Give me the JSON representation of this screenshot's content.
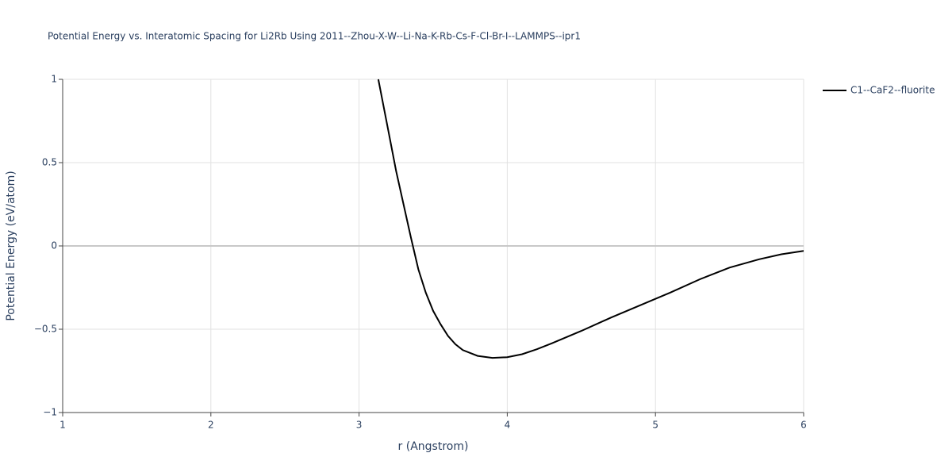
{
  "chart_data": {
    "type": "line",
    "title": "Potential Energy vs. Interatomic Spacing for Li2Rb Using 2011--Zhou-X-W--Li-Na-K-Rb-Cs-F-Cl-Br-I--LAMMPS--ipr1",
    "x_label": "r (Angstrom)",
    "y_label": "Potential Energy (eV/atom)",
    "xlim": [
      1,
      6
    ],
    "ylim": [
      -1,
      1
    ],
    "xticks": [
      1,
      2,
      3,
      4,
      5,
      6
    ],
    "yticks": [
      {
        "value": -1,
        "label": "−1"
      },
      {
        "value": -0.5,
        "label": "−0.5"
      },
      0,
      0.5,
      1
    ],
    "grid": true,
    "legend": "top-right",
    "x": [
      3.13,
      3.2,
      3.25,
      3.3,
      3.35,
      3.4,
      3.45,
      3.5,
      3.55,
      3.6,
      3.65,
      3.7,
      3.8,
      3.9,
      4.0,
      4.1,
      4.2,
      4.3,
      4.5,
      4.7,
      4.9,
      5.1,
      5.3,
      5.5,
      5.7,
      5.85,
      6.0
    ],
    "series": [
      {
        "name": "C1--CaF2--fluorite",
        "color": "#000000",
        "values": [
          1.0,
          0.68,
          0.45,
          0.25,
          0.05,
          -0.14,
          -0.28,
          -0.39,
          -0.47,
          -0.54,
          -0.59,
          -0.625,
          -0.66,
          -0.672,
          -0.668,
          -0.65,
          -0.62,
          -0.585,
          -0.51,
          -0.43,
          -0.355,
          -0.28,
          -0.2,
          -0.13,
          -0.08,
          -0.05,
          -0.03
        ]
      }
    ]
  }
}
